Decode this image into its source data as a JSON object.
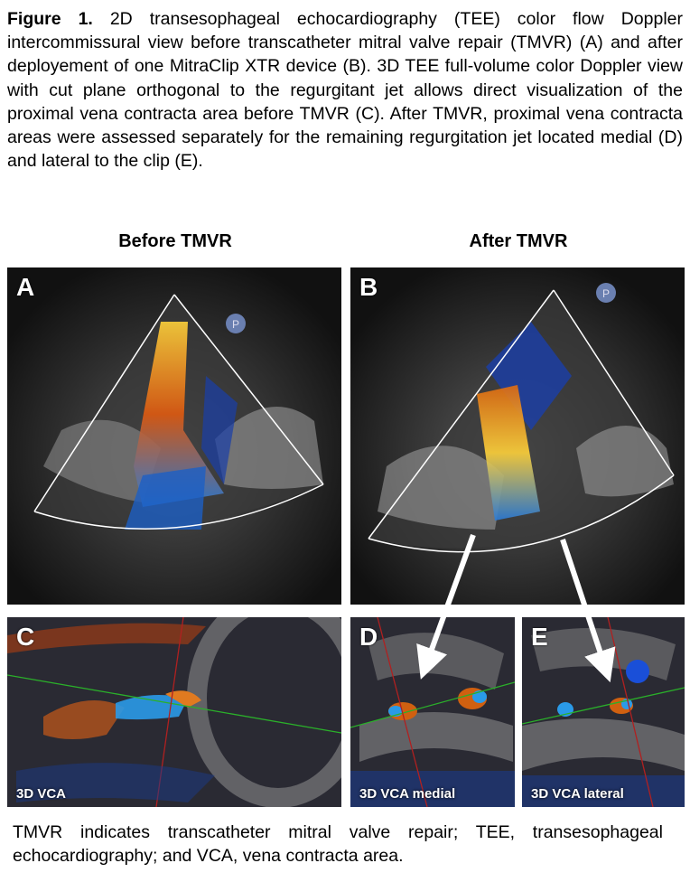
{
  "caption": {
    "fig_label": "Figure 1.",
    "text": "2D transesophageal echocardiography (TEE) color flow Doppler intercommissural view before transcatheter mitral valve repair (TMVR) (A) and after deployement of one MitraClip XTR device (B). 3D TEE full-volume color Doppler view with cut plane orthogonal to the regurgitant jet allows direct visualization of the proximal vena contracta area before TMVR (C). After TMVR, proximal vena contracta areas were assessed separately for the remaining regurgitation jet located medial (D) and lateral to the clip (E)."
  },
  "columns": {
    "before": "Before TMVR",
    "after": "After TMVR"
  },
  "panels": {
    "A": {
      "label": "A",
      "marker": "P"
    },
    "B": {
      "label": "B",
      "marker": "P"
    },
    "C": {
      "label": "C",
      "overlay": "3D VCA"
    },
    "D": {
      "label": "D",
      "overlay": "3D VCA medial"
    },
    "E": {
      "label": "E",
      "overlay": "3D VCA lateral"
    }
  },
  "footer": "TMVR indicates transcatheter mitral valve repair; TEE, transesophageal echocardiography; and VCA, vena contracta area."
}
